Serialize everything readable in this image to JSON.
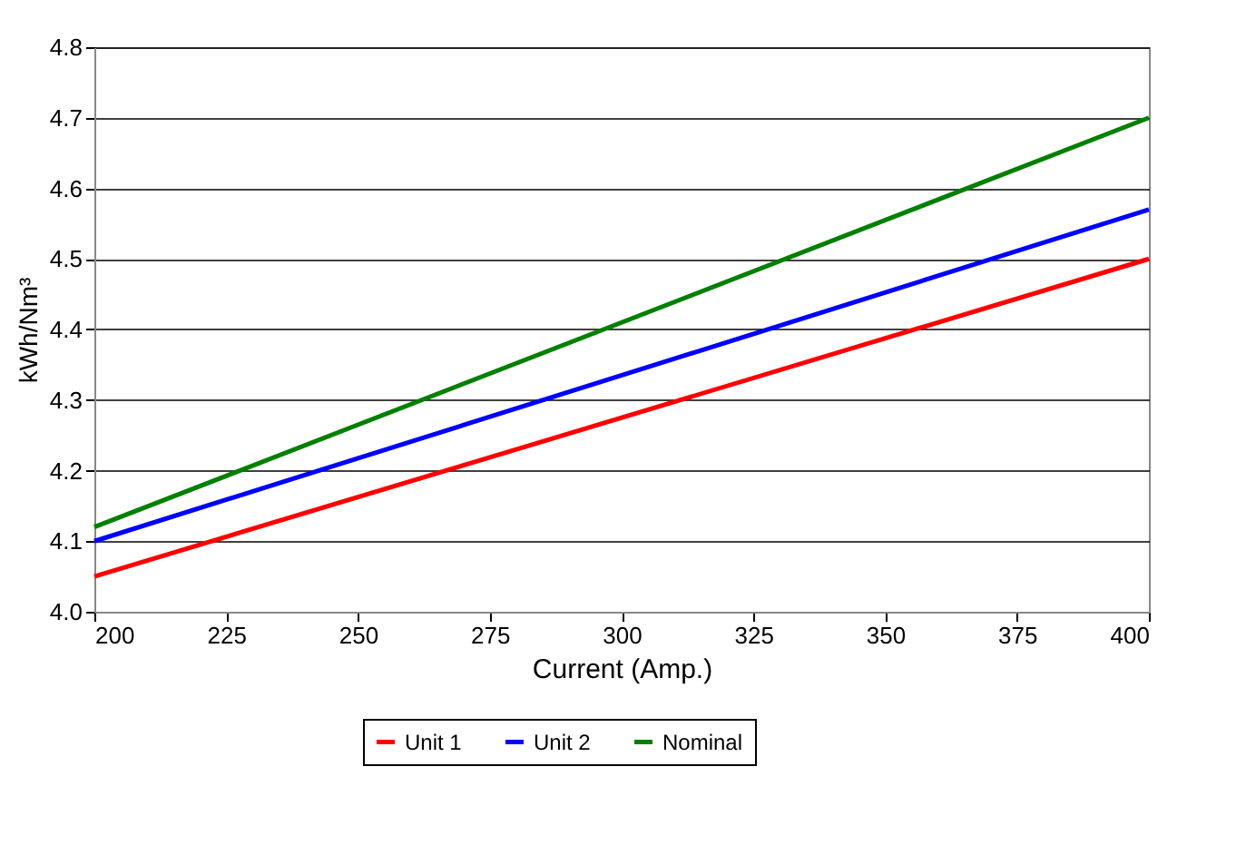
{
  "chart_data": {
    "type": "line",
    "xlabel": "Current (Amp.)",
    "ylabel": "kWh/Nm³",
    "x": [
      200,
      400
    ],
    "series": [
      {
        "name": "Unit 1",
        "color": "#ff0000",
        "values": [
          4.05,
          4.5
        ]
      },
      {
        "name": "Unit 2",
        "color": "#0000ff",
        "values": [
          4.1,
          4.57
        ]
      },
      {
        "name": "Nominal",
        "color": "#008000",
        "values": [
          4.12,
          4.7
        ]
      }
    ],
    "xlim": [
      200,
      400
    ],
    "xticks": [
      200,
      225,
      250,
      275,
      300,
      325,
      350,
      375,
      400
    ],
    "ylim": [
      4.0,
      4.8
    ],
    "yticks": [
      {
        "value": 4.0,
        "label": "4.0"
      },
      4.1,
      4.2,
      4.3,
      4.4,
      4.5,
      4.6,
      4.7,
      4.8
    ],
    "grid": "y",
    "legend": "bottom",
    "marker": "none",
    "line_style": "solid"
  }
}
